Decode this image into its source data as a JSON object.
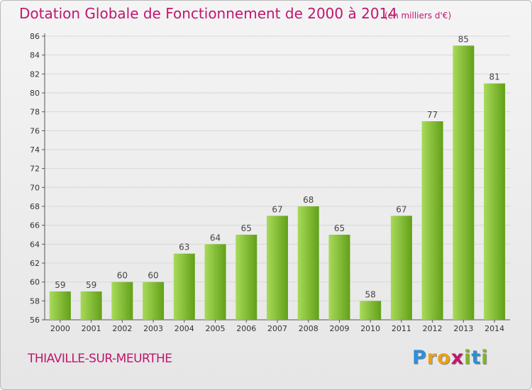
{
  "title": "Dotation Globale de Fonctionnement de 2000 à 2014",
  "subtitle": "(en milliers d'€)",
  "commune": "THIAVILLE-SUR-MEURTHE",
  "logo": {
    "letters": [
      "P",
      "r",
      "o",
      "x",
      "i",
      "t",
      "i"
    ],
    "colors": [
      "#2e8fd6",
      "#e8a11b",
      "#e8a11b",
      "#c0166e",
      "#7db52c",
      "#2e8fd6",
      "#7db52c"
    ]
  },
  "colors": {
    "title": "#c0166e",
    "bar_light": "#a8da5a",
    "bar_dark": "#62a018"
  },
  "chart_data": {
    "type": "bar",
    "categories": [
      "2000",
      "2001",
      "2002",
      "2003",
      "2004",
      "2005",
      "2006",
      "2007",
      "2008",
      "2009",
      "2010",
      "2011",
      "2012",
      "2013",
      "2014"
    ],
    "values": [
      59,
      59,
      60,
      60,
      63,
      64,
      65,
      67,
      68,
      65,
      58,
      67,
      77,
      85,
      81
    ],
    "ylim": [
      56,
      86
    ],
    "yticks": [
      56,
      58,
      60,
      62,
      64,
      66,
      68,
      70,
      72,
      74,
      76,
      78,
      80,
      82,
      84,
      86
    ],
    "grid": true,
    "data_labels": true
  }
}
